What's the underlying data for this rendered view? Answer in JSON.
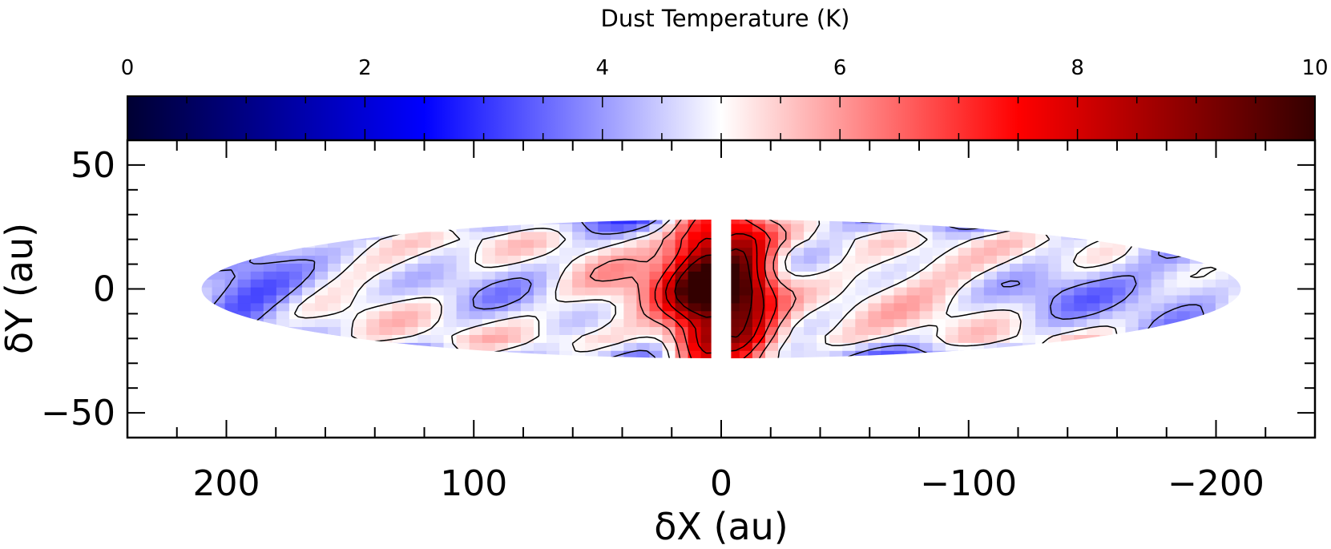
{
  "chart_data": {
    "type": "heatmap",
    "title": "",
    "colorbar": {
      "label": "Dust Temperature (K)",
      "range": [
        0,
        10
      ],
      "ticks": [
        "0",
        "2",
        "4",
        "6",
        "8",
        "10"
      ],
      "colormap": [
        "#000033",
        "#0000ff",
        "#ffffff",
        "#ff0000",
        "#330000"
      ],
      "placement": "top"
    },
    "xlabel": "δX (au)",
    "ylabel": "δY (au)",
    "xlim": [
      240,
      -240
    ],
    "ylim": [
      -60,
      60
    ],
    "xticks": [
      "200",
      "100",
      "0",
      "−100",
      "−200"
    ],
    "yticks": [
      "50",
      "0",
      "−50"
    ],
    "xtick_values": [
      200,
      100,
      0,
      -100,
      -200
    ],
    "ytick_values": [
      50,
      0,
      -50
    ],
    "disk": {
      "semi_major_au": 210,
      "semi_minor_au": 28,
      "central_gap_au": [
        -4,
        4
      ],
      "hot_center_K": 10,
      "mean_temperature_K": 5,
      "min_temperature_K": 3.3,
      "contour_levels_K": [
        4,
        5,
        6,
        7,
        8,
        9
      ]
    }
  }
}
